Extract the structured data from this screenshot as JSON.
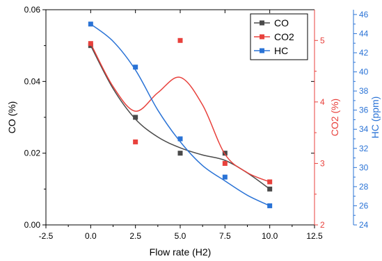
{
  "chart_data": {
    "type": "scatter",
    "xlabel": "Flow rate (H2)",
    "xlim": [
      -2.5,
      12.5
    ],
    "x_ticks": [
      "-2.5",
      "0.0",
      "2.5",
      "5.0",
      "7.5",
      "10.0",
      "12.5"
    ],
    "legend_position": "top-right",
    "grid": false,
    "x": [
      0,
      2.5,
      5,
      7.5,
      10
    ],
    "axes": [
      {
        "id": "co",
        "label": "CO (%)",
        "side": "left",
        "lim": [
          0,
          0.06
        ],
        "ticks": [
          "0.00",
          "0.02",
          "0.04",
          "0.06"
        ],
        "color": "#333333"
      },
      {
        "id": "co2",
        "label": "CO2 (%)",
        "side": "right",
        "lim": [
          2,
          5.5
        ],
        "ticks": [
          "2",
          "3",
          "4",
          "5"
        ],
        "color": "#e8413c"
      },
      {
        "id": "hc",
        "label": "HC (ppm)",
        "side": "right-outer",
        "lim": [
          24,
          46.5
        ],
        "ticks": [
          "24",
          "26",
          "28",
          "30",
          "32",
          "34",
          "36",
          "38",
          "40",
          "42",
          "44",
          "46"
        ],
        "color": "#2a73d6"
      }
    ],
    "series": [
      {
        "name": "CO",
        "axis": "co",
        "color": "#4a4a4a",
        "values": [
          0.05,
          0.03,
          0.02,
          0.02,
          0.01
        ],
        "curve": [
          [
            0,
            0.05
          ],
          [
            1.25,
            0.038
          ],
          [
            2.5,
            0.0295
          ],
          [
            3.75,
            0.0245
          ],
          [
            5,
            0.0215
          ],
          [
            6.25,
            0.0195
          ],
          [
            7.5,
            0.018
          ],
          [
            8.75,
            0.0145
          ],
          [
            10,
            0.01
          ]
        ]
      },
      {
        "name": "CO2",
        "axis": "co2",
        "color": "#e8413c",
        "values": [
          4.95,
          3.35,
          5.0,
          3.0,
          2.7
        ],
        "curve": [
          [
            0,
            4.95
          ],
          [
            1.25,
            4.25
          ],
          [
            2.5,
            3.85
          ],
          [
            3.75,
            4.15
          ],
          [
            5,
            4.4
          ],
          [
            6.25,
            3.95
          ],
          [
            7.5,
            3.15
          ],
          [
            8.75,
            2.85
          ],
          [
            10,
            2.7
          ]
        ]
      },
      {
        "name": "HC",
        "axis": "hc",
        "color": "#2a73d6",
        "values": [
          45.0,
          40.5,
          33.0,
          29.0,
          26.0
        ],
        "curve": [
          [
            0,
            45.0
          ],
          [
            1.25,
            43.2
          ],
          [
            2.5,
            40.2
          ],
          [
            3.75,
            36.0
          ],
          [
            5,
            32.7
          ],
          [
            6.25,
            30.2
          ],
          [
            7.5,
            28.6
          ],
          [
            8.75,
            27.1
          ],
          [
            10,
            26.0
          ]
        ]
      }
    ]
  }
}
